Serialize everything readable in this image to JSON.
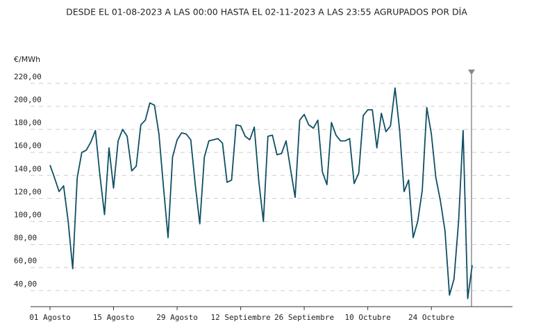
{
  "chart_data": {
    "type": "line",
    "title": "DESDE EL 01-08-2023 A LAS 00:00 HASTA EL 02-11-2023 A LAS 23:55 AGRUPADOS POR DÍA",
    "y_label": "€/MWh",
    "categories": [
      "01 Agosto",
      null,
      null,
      null,
      null,
      null,
      null,
      null,
      null,
      null,
      null,
      null,
      null,
      null,
      "15 Agosto",
      null,
      null,
      null,
      null,
      null,
      null,
      null,
      null,
      null,
      null,
      null,
      null,
      null,
      "29 Agosto",
      null,
      null,
      null,
      null,
      null,
      null,
      null,
      null,
      null,
      null,
      null,
      null,
      null,
      "12 Septiembre",
      null,
      null,
      null,
      null,
      null,
      null,
      null,
      null,
      null,
      null,
      null,
      null,
      null,
      "26 Septiembre",
      null,
      null,
      null,
      null,
      null,
      null,
      null,
      null,
      null,
      null,
      null,
      null,
      null,
      "10 Octubre",
      null,
      null,
      null,
      null,
      null,
      null,
      null,
      null,
      null,
      null,
      null,
      null,
      null,
      "24 Octubre",
      null,
      null,
      null,
      null,
      null,
      null,
      null,
      null,
      null
    ],
    "series": [
      {
        "color": "#0d4f63",
        "values": [
          149,
          138,
          126,
          131,
          100,
          59,
          138,
          160,
          162,
          169,
          179,
          140,
          106,
          164,
          129,
          170,
          180,
          174,
          144,
          148,
          184,
          188,
          203,
          201,
          176,
          130,
          86,
          156,
          171,
          177,
          176,
          171,
          132,
          98,
          156,
          170,
          171,
          172,
          168,
          134,
          136,
          184,
          183,
          174,
          171,
          182,
          135,
          100,
          174,
          175,
          158,
          159,
          170,
          145,
          121,
          188,
          193,
          184,
          181,
          188,
          143,
          132,
          186,
          175,
          170,
          170,
          172,
          133,
          142,
          192,
          197,
          197,
          164,
          194,
          178,
          183,
          216,
          180,
          126,
          136,
          86,
          100,
          127,
          199,
          176,
          138,
          118,
          92,
          36,
          50,
          100,
          179,
          33,
          62
        ]
      }
    ],
    "ylim": [
      26,
      232
    ],
    "yticks": [
      {
        "value": 40,
        "label": "40,00"
      },
      {
        "value": 60,
        "label": "60,00"
      },
      {
        "value": 80,
        "label": "80,00"
      },
      {
        "value": 100,
        "label": "100,00"
      },
      {
        "value": 120,
        "label": "120,00"
      },
      {
        "value": 140,
        "label": "140,00"
      },
      {
        "value": 160,
        "label": "160,00"
      },
      {
        "value": 180,
        "label": "180,00"
      },
      {
        "value": 200,
        "label": "200,00"
      },
      {
        "value": 220,
        "label": "220,00"
      }
    ],
    "grid": true
  }
}
